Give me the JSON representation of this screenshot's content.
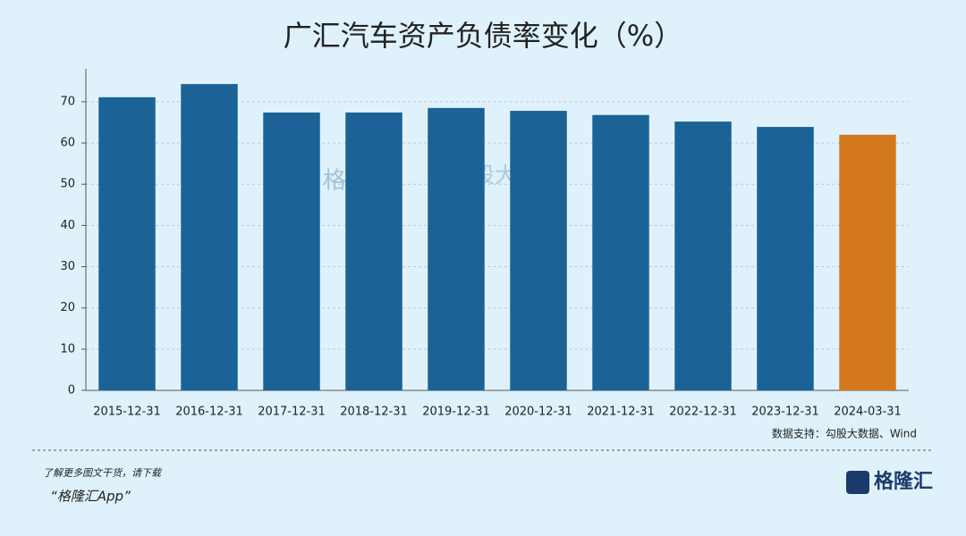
{
  "chart_data": {
    "type": "bar",
    "title": "广汇汽车资产负债率变化（%）",
    "categories": [
      "2015-12-31",
      "2016-12-31",
      "2017-12-31",
      "2018-12-31",
      "2019-12-31",
      "2020-12-31",
      "2021-12-31",
      "2022-12-31",
      "2023-12-31",
      "2024-03-31"
    ],
    "values": [
      71.1,
      74.3,
      67.4,
      67.4,
      68.5,
      67.8,
      66.8,
      65.2,
      63.9,
      62.0
    ],
    "colors": [
      "#1b6396",
      "#1b6396",
      "#1b6396",
      "#1b6396",
      "#1b6396",
      "#1b6396",
      "#1b6396",
      "#1b6396",
      "#1b6396",
      "#d4781d"
    ],
    "ylim": [
      0,
      78
    ],
    "yticks": [
      0,
      10,
      20,
      30,
      40,
      50,
      60,
      70
    ],
    "grid": true,
    "source": "数据支持：勾股大数据、Wind",
    "watermark": [
      "格隆汇",
      "勾股大数据"
    ]
  },
  "footer": {
    "line1": "了解更多图文干货，请下载",
    "line2": "“格隆汇App”",
    "brand": "格隆汇"
  }
}
